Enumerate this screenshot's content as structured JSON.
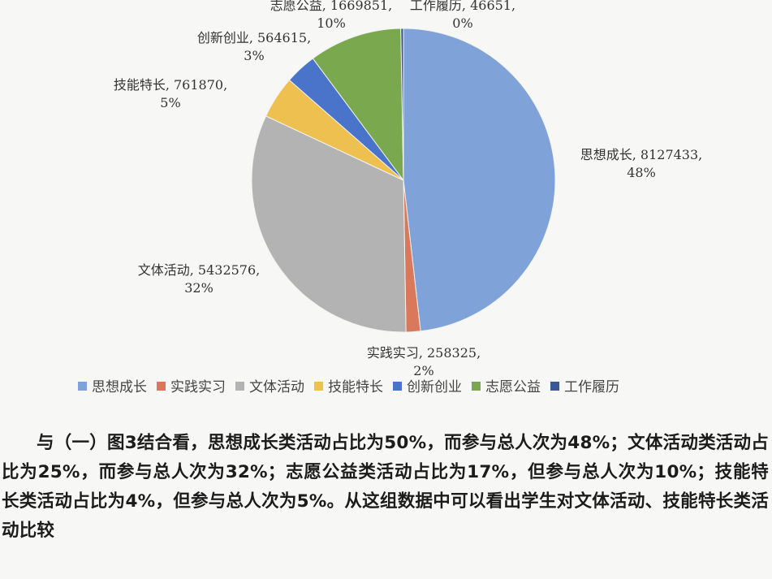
{
  "chart_data": {
    "type": "pie",
    "slices": [
      {
        "name": "思想成长",
        "value": 8127433,
        "percent": "48%",
        "color": "#7fa3d8"
      },
      {
        "name": "实践实习",
        "value": 258325,
        "percent": "2%",
        "color": "#d9785a"
      },
      {
        "name": "文体活动",
        "value": 5432576,
        "percent": "32%",
        "color": "#b3b3b3"
      },
      {
        "name": "技能特长",
        "value": 761870,
        "percent": "5%",
        "color": "#eec04f"
      },
      {
        "name": "创新创业",
        "value": 564615,
        "percent": "3%",
        "color": "#4a74c9"
      },
      {
        "name": "志愿公益",
        "value": 1669851,
        "percent": "10%",
        "color": "#7aa84e"
      },
      {
        "name": "工作履历",
        "value": 46651,
        "percent": "0%",
        "color": "#3b5796"
      }
    ],
    "legend": {
      "placement": "bottom",
      "entries": [
        "思想成长",
        "实践实习",
        "文体活动",
        "技能特长",
        "创新创业",
        "志愿公益",
        "工作履历"
      ]
    }
  },
  "text": {
    "paragraph": "与（一）图3结合看，思想成长类活动占比为50%，而参与总人次为48%；文体活动类活动占比为25%，而参与总人次为32%；志愿公益类活动占比为17%，但参与总人次为10%；技能特长类活动占比为4%，但参与总人次为5%。从这组数据中可以看出学生对文体活动、技能特长类活动比较"
  }
}
